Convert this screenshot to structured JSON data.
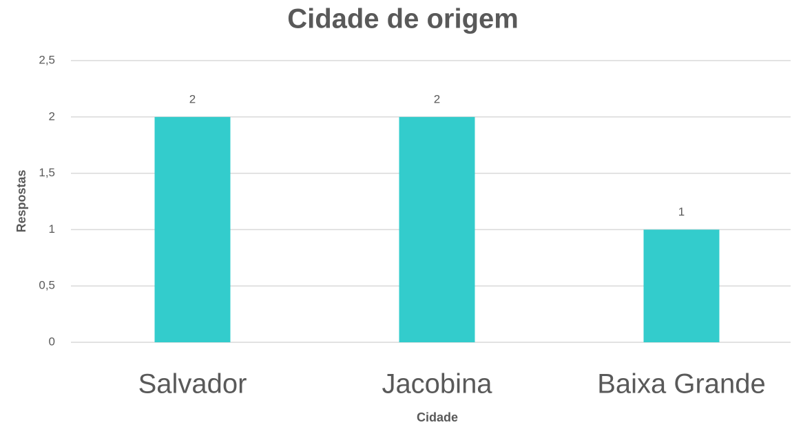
{
  "chart_data": {
    "type": "bar",
    "title": "Cidade de origem",
    "x_label": "Cidade",
    "y_label": "Respostas",
    "categories": [
      "Salvador",
      "Jacobina",
      "Baixa Grande"
    ],
    "values": [
      2,
      2,
      1
    ],
    "color": "#33cccc",
    "ylim": [
      0,
      2.5
    ],
    "yticks": [
      0,
      {
        "value": 0.5,
        "label": "0,5"
      },
      1,
      {
        "value": 1.5,
        "label": "1,5"
      },
      2,
      {
        "value": 2.5,
        "label": "2,5"
      }
    ],
    "grid": true
  }
}
